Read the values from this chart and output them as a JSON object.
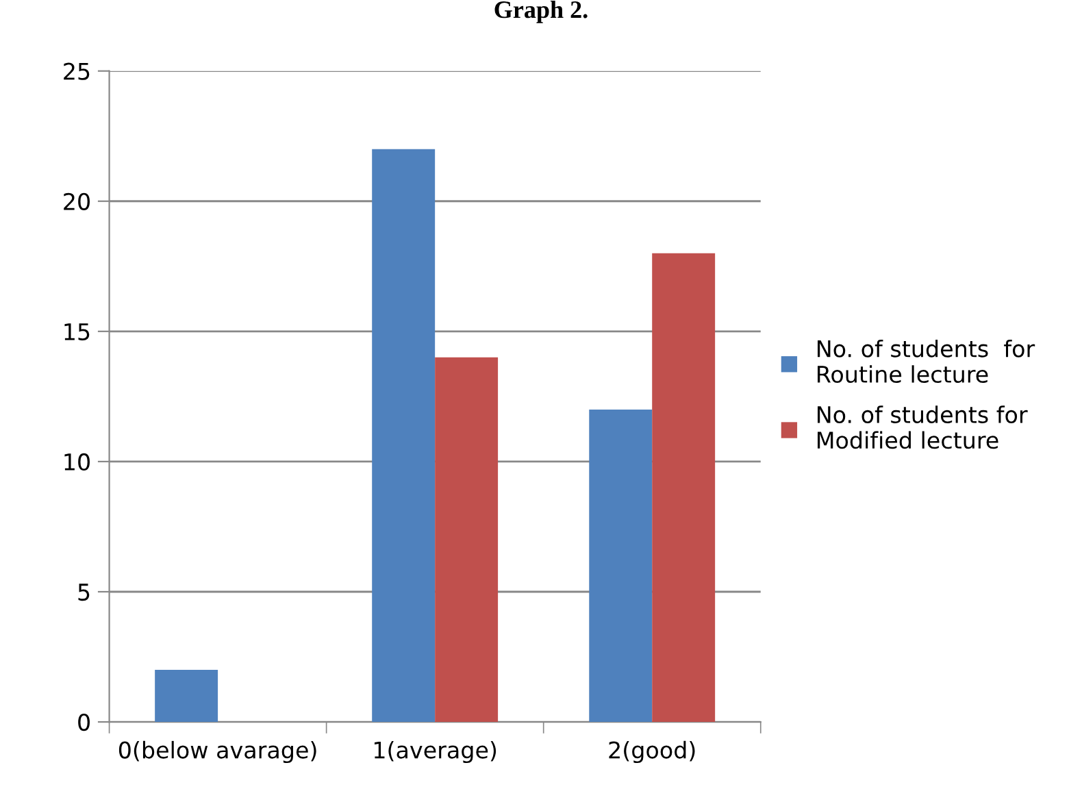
{
  "chart_data": {
    "type": "bar",
    "title": "Graph 2.",
    "categories": [
      "0(below avarage)",
      "1(average)",
      "2(good)"
    ],
    "series": [
      {
        "name": "No. of students  for\nRoutine lecture",
        "color": "#4f81bd",
        "values": [
          2,
          22,
          12
        ]
      },
      {
        "name": "No. of students for\nModified lecture",
        "color": "#c0504d",
        "values": [
          0,
          14,
          18
        ]
      }
    ],
    "ylim": [
      0,
      25
    ],
    "yticks": [
      0,
      5,
      10,
      15,
      20,
      25
    ],
    "grid": "y",
    "legend": "right"
  }
}
